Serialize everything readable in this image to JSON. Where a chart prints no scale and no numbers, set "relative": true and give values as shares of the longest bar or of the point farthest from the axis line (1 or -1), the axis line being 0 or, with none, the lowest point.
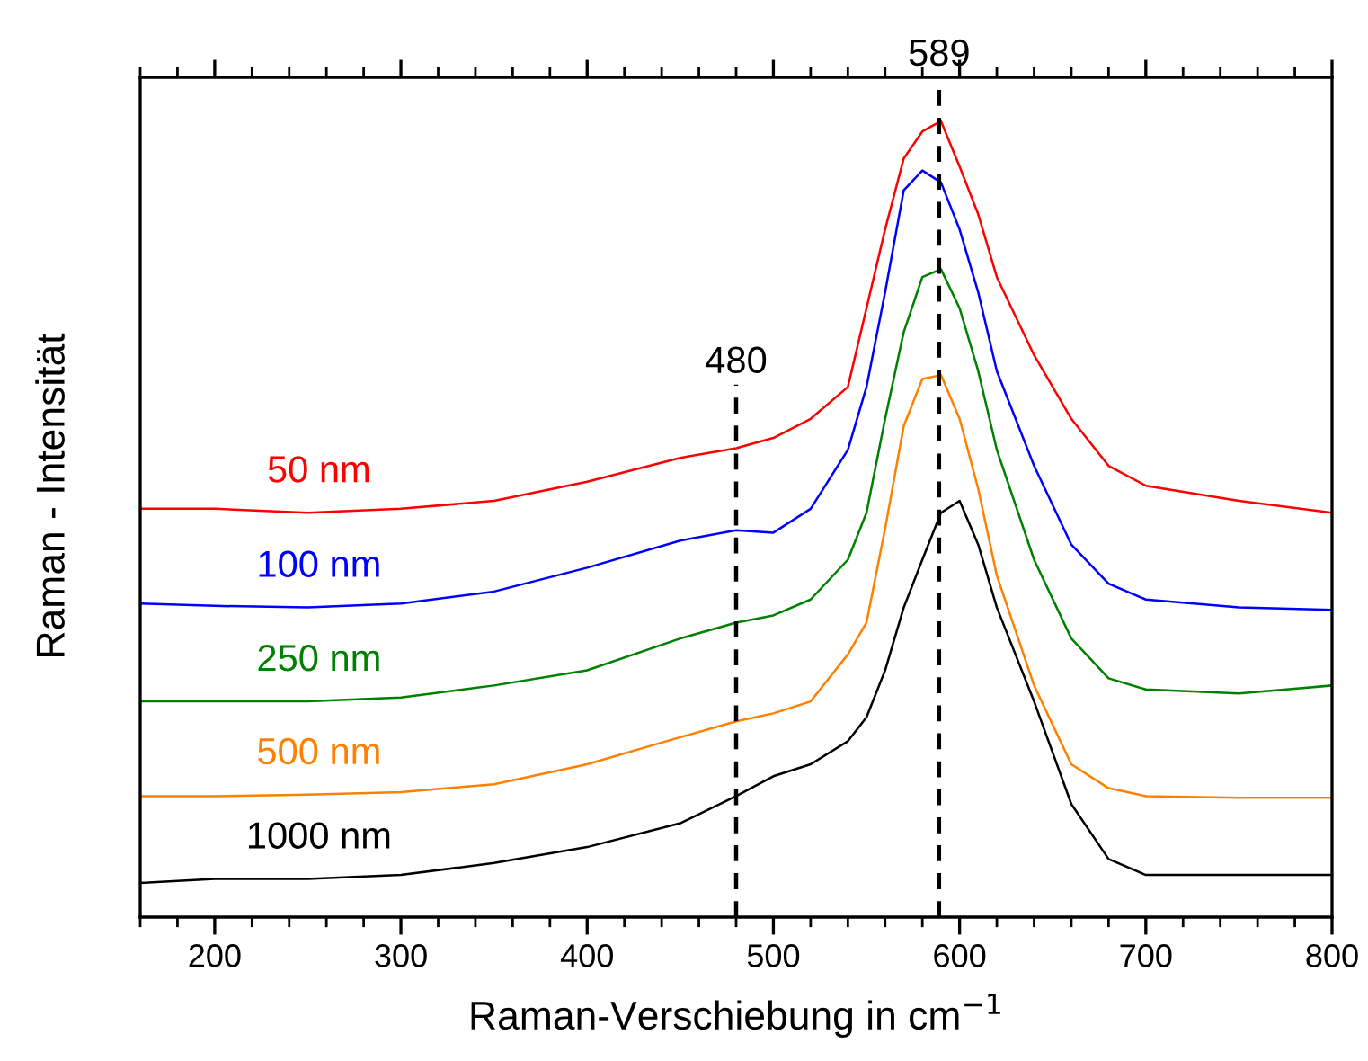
{
  "chart_data": {
    "type": "line",
    "relative": true,
    "xlabel": "Raman-Verschiebung in cm$^{−1}$",
    "ylabel": "Raman - Intensität",
    "x": [
      160,
      200,
      250,
      300,
      350,
      400,
      450,
      480,
      500,
      520,
      540,
      550,
      560,
      570,
      580,
      590,
      600,
      610,
      620,
      640,
      660,
      680,
      700,
      750,
      800
    ],
    "xlim": [
      160,
      800
    ],
    "xticks": [
      200,
      300,
      400,
      500,
      600,
      700,
      800
    ],
    "grid": false,
    "legend": false,
    "marker": "none",
    "line_style": "solid",
    "series": [
      {
        "name": "50 nm",
        "color": "#ff0000",
        "values": [
          0.513,
          0.513,
          0.508,
          0.513,
          0.523,
          0.547,
          0.577,
          0.589,
          0.602,
          0.626,
          0.666,
          0.765,
          0.864,
          0.953,
          0.987,
          1.0,
          0.943,
          0.883,
          0.804,
          0.706,
          0.626,
          0.567,
          0.542,
          0.523,
          0.508
        ]
      },
      {
        "name": "100 nm",
        "color": "#0000ff",
        "values": [
          0.394,
          0.391,
          0.389,
          0.394,
          0.409,
          0.439,
          0.473,
          0.486,
          0.483,
          0.513,
          0.587,
          0.666,
          0.785,
          0.913,
          0.938,
          0.923,
          0.864,
          0.785,
          0.686,
          0.567,
          0.468,
          0.419,
          0.399,
          0.389,
          0.386
        ]
      },
      {
        "name": "250 nm",
        "color": "#008000",
        "values": [
          0.271,
          0.271,
          0.271,
          0.276,
          0.291,
          0.31,
          0.35,
          0.37,
          0.379,
          0.399,
          0.449,
          0.508,
          0.626,
          0.735,
          0.804,
          0.814,
          0.765,
          0.686,
          0.587,
          0.449,
          0.35,
          0.3,
          0.286,
          0.281,
          0.291
        ]
      },
      {
        "name": "500 nm",
        "color": "#ff8000",
        "values": [
          0.152,
          0.152,
          0.154,
          0.157,
          0.167,
          0.192,
          0.226,
          0.246,
          0.256,
          0.271,
          0.33,
          0.37,
          0.488,
          0.617,
          0.676,
          0.681,
          0.626,
          0.538,
          0.429,
          0.291,
          0.192,
          0.162,
          0.152,
          0.15,
          0.15
        ]
      },
      {
        "name": "1000 nm",
        "color": "#000000",
        "values": [
          0.043,
          0.048,
          0.048,
          0.053,
          0.068,
          0.088,
          0.118,
          0.152,
          0.177,
          0.192,
          0.221,
          0.251,
          0.31,
          0.389,
          0.449,
          0.508,
          0.523,
          0.468,
          0.389,
          0.271,
          0.142,
          0.073,
          0.053,
          0.053,
          0.053
        ]
      }
    ],
    "ref_lines": [
      {
        "axis": "x",
        "value": 480,
        "label": "480",
        "color": "#000000",
        "line_style": "dashed"
      },
      {
        "axis": "x",
        "value": 589,
        "label": "589",
        "color": "#000000",
        "line_style": "dashed"
      }
    ]
  }
}
